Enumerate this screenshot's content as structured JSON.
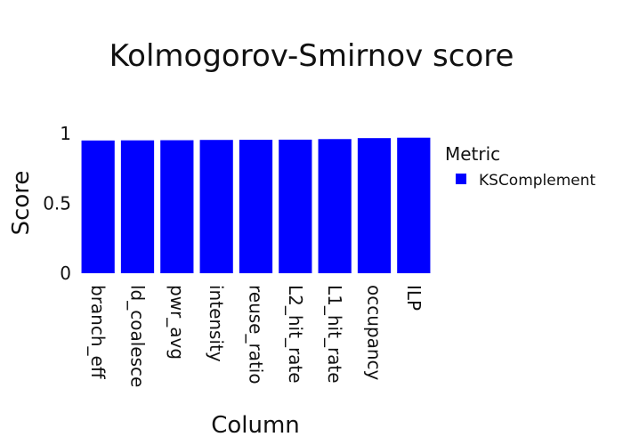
{
  "chart_data": {
    "type": "bar",
    "title": "Kolmogorov-Smirnov score",
    "xlabel": "Column",
    "ylabel": "Score",
    "categories": [
      "branch_eff",
      "ld_coalesce",
      "pwr_avg",
      "intensity",
      "reuse_ratio",
      "L2_hit_rate",
      "L1_hit_rate",
      "occupancy",
      "ILP"
    ],
    "series": [
      {
        "name": "KSComplement",
        "color": "#0000FF",
        "values": [
          0.95,
          0.951,
          0.952,
          0.954,
          0.955,
          0.956,
          0.96,
          0.967,
          0.97
        ]
      }
    ],
    "ylim": [
      0,
      1
    ],
    "yticks": [
      0,
      0.5,
      1
    ],
    "ytick_labels": [
      "0",
      "0.5",
      "1"
    ],
    "grid": false,
    "legend": {
      "title": "Metric",
      "position": "right"
    }
  }
}
